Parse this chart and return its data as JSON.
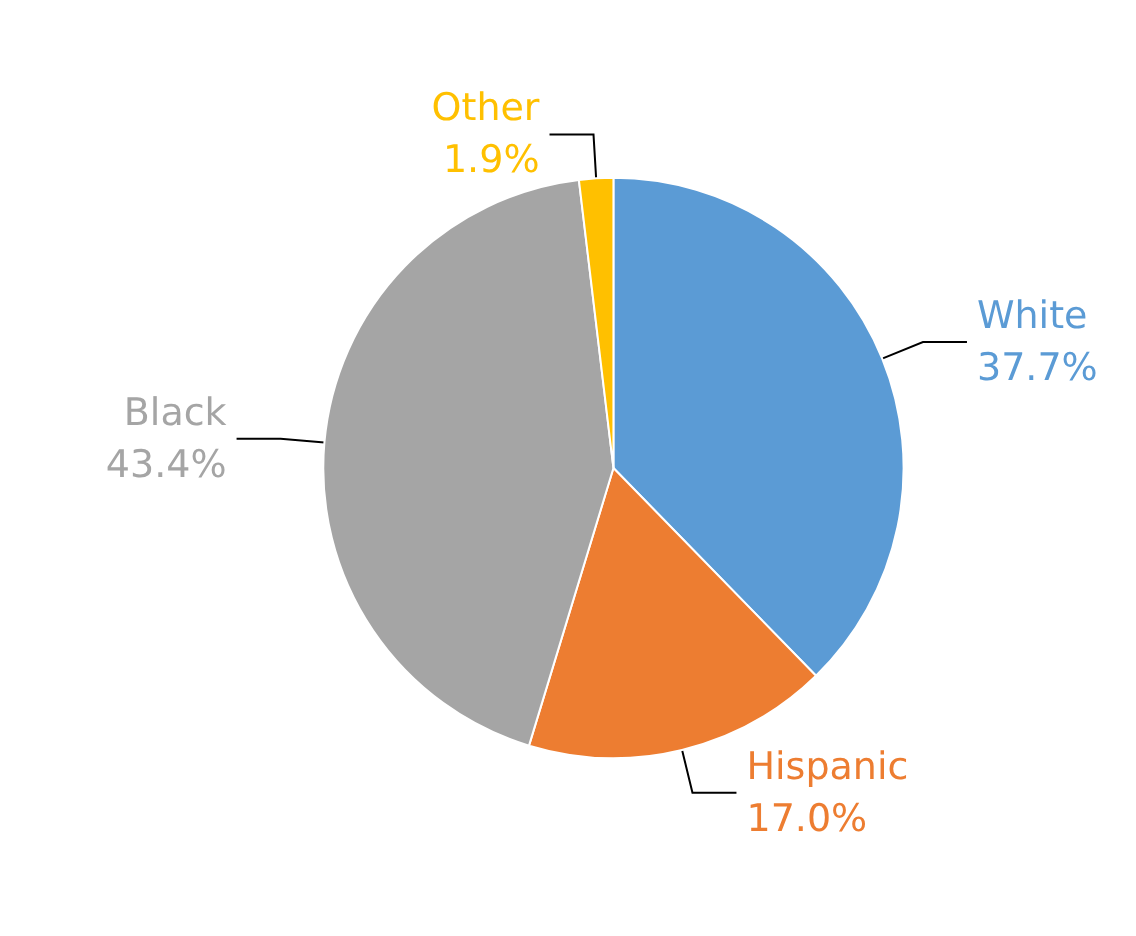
{
  "chart_data": {
    "type": "pie",
    "categories": [
      "White",
      "Hispanic",
      "Black",
      "Other"
    ],
    "values": [
      37.7,
      17.0,
      43.4,
      1.9
    ],
    "value_labels": [
      "37.7%",
      "17.0%",
      "43.4%",
      "1.9%"
    ],
    "colors": [
      "#5b9bd5",
      "#ed7d31",
      "#a5a5a5",
      "#ffc000"
    ],
    "legend": false
  }
}
